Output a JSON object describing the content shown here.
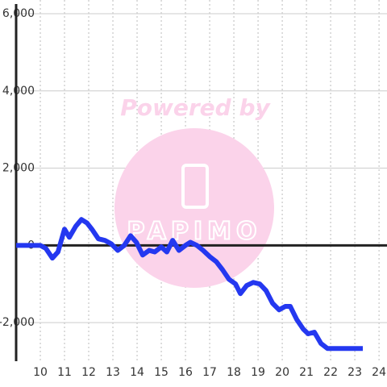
{
  "chart_data": {
    "type": "line",
    "watermark": "Powered by",
    "watermark_logo": "PAPIMO",
    "x": [
      9.0,
      10.0,
      10.23,
      10.5,
      10.73,
      11.0,
      11.2,
      11.47,
      11.7,
      11.93,
      12.13,
      12.4,
      12.67,
      12.93,
      13.2,
      13.47,
      13.73,
      13.97,
      14.23,
      14.5,
      14.73,
      15.0,
      15.23,
      15.47,
      15.73,
      16.0,
      16.2,
      16.47,
      16.73,
      17.0,
      17.27,
      17.53,
      17.8,
      18.07,
      18.27,
      18.53,
      18.8,
      19.07,
      19.33,
      19.6,
      19.87,
      20.13,
      20.33,
      20.6,
      20.87,
      21.07,
      21.33,
      21.6,
      21.87,
      23.33
    ],
    "series": [
      {
        "color": "#2438f0",
        "values": [
          0,
          0,
          -80,
          -330,
          -170,
          420,
          210,
          500,
          670,
          580,
          420,
          170,
          130,
          40,
          -130,
          0,
          250,
          80,
          -250,
          -130,
          -170,
          -40,
          -170,
          130,
          -130,
          0,
          80,
          0,
          -130,
          -290,
          -420,
          -630,
          -880,
          -1000,
          -1250,
          -1040,
          -960,
          -1000,
          -1170,
          -1500,
          -1670,
          -1580,
          -1580,
          -1920,
          -2170,
          -2290,
          -2250,
          -2540,
          -2670,
          -2670
        ]
      }
    ],
    "xlim": [
      9,
      24.33
    ],
    "xticks": [
      10,
      11,
      12,
      13,
      14,
      15,
      16,
      17,
      18,
      19,
      20,
      21,
      22,
      23,
      24
    ],
    "ylim": [
      -3000,
      6000
    ],
    "yticks": [
      {
        "value": -2000,
        "label": "-2,000"
      },
      0,
      {
        "value": 2000,
        "label": "2,000"
      },
      {
        "value": 4000,
        "label": "4,000"
      },
      {
        "value": 6000,
        "label": "6,000"
      }
    ],
    "grid": true
  }
}
